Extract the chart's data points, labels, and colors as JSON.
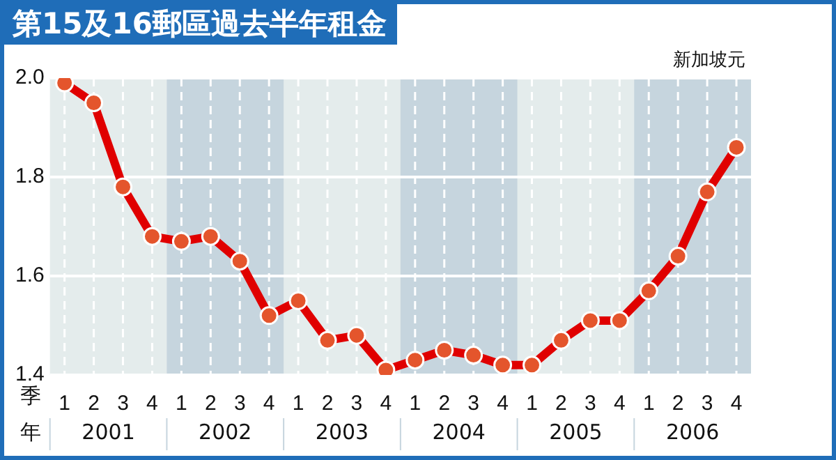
{
  "chart_data": {
    "type": "line",
    "title": "第15及16郵區過去半年租金",
    "ylabel": "新加坡元",
    "xlabel": "季年",
    "categories": [
      "1",
      "2",
      "3",
      "4",
      "1",
      "2",
      "3",
      "4",
      "1",
      "2",
      "3",
      "4",
      "1",
      "2",
      "3",
      "4",
      "1",
      "2",
      "3",
      "4",
      "1",
      "2",
      "3",
      "4"
    ],
    "annotations": [
      "2001",
      "2002",
      "2003",
      "2004",
      "2005",
      "2006"
    ],
    "series": [
      {
        "color": "#e00000",
        "values": [
          1.99,
          1.95,
          1.78,
          1.68,
          1.67,
          1.68,
          1.63,
          1.52,
          1.55,
          1.47,
          1.48,
          1.41,
          1.43,
          1.45,
          1.44,
          1.42,
          1.42,
          1.47,
          1.51,
          1.51,
          1.57,
          1.64,
          1.77,
          1.86
        ]
      }
    ],
    "ylim": [
      1.4,
      2.0
    ],
    "yticks": [
      1.4,
      1.6,
      1.8,
      {
        "value": 2,
        "label": "2.0"
      }
    ],
    "grid": true,
    "marker": "circle",
    "line_style": "solid",
    "legend": false
  }
}
